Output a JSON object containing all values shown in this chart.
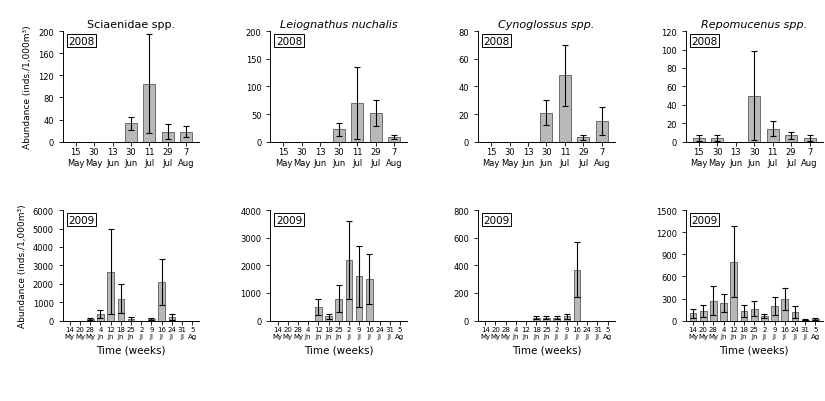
{
  "panels": [
    {
      "title": "Sciaenidae spp.",
      "title_italic": false,
      "rows": [
        {
          "year": "2008",
          "ylim": [
            0,
            200
          ],
          "yticks": [
            0,
            40,
            80,
            120,
            160,
            200
          ],
          "bars": [
            0,
            0,
            0,
            33,
            105,
            18,
            18
          ],
          "errors": [
            0,
            0,
            0,
            12,
            90,
            14,
            10
          ],
          "xticklabels": [
            "15\nMay",
            "30\nMay",
            "13\nJun",
            "30\nJun",
            "11\nJul",
            "29\nJul",
            "7\nAug"
          ]
        },
        {
          "year": "2009",
          "ylim": [
            0,
            6000
          ],
          "yticks": [
            0,
            1000,
            2000,
            3000,
            4000,
            5000,
            6000
          ],
          "bars": [
            0,
            0,
            100,
            350,
            2650,
            1200,
            100,
            0,
            100,
            2100,
            200,
            0,
            0
          ],
          "errors": [
            0,
            0,
            50,
            200,
            2300,
            800,
            100,
            0,
            50,
            1250,
            150,
            0,
            0
          ],
          "xticklabels": [
            "14\nMy",
            "20\nMy",
            "28\nMy",
            "4\nJn",
            "12\nJn",
            "18\nJn",
            "25\nJn",
            "2\nJl",
            "9\nJl",
            "16\nJl",
            "24\nJl",
            "31\nJl",
            "5\nAg"
          ]
        }
      ]
    },
    {
      "title": "Leiognathus nuchalis",
      "title_italic": true,
      "rows": [
        {
          "year": "2008",
          "ylim": [
            0,
            200
          ],
          "yticks": [
            0,
            50,
            100,
            150,
            200
          ],
          "bars": [
            0,
            0,
            0,
            22,
            70,
            52,
            8
          ],
          "errors": [
            0,
            0,
            0,
            12,
            65,
            23,
            4
          ],
          "xticklabels": [
            "15\nMay",
            "30\nMay",
            "13\nJun",
            "30\nJun",
            "11\nJul",
            "29\nJul",
            "7\nAug"
          ]
        },
        {
          "year": "2009",
          "ylim": [
            0,
            4000
          ],
          "yticks": [
            0,
            1000,
            2000,
            3000,
            4000
          ],
          "bars": [
            0,
            0,
            0,
            0,
            500,
            150,
            800,
            2200,
            1600,
            1500,
            0,
            0,
            0
          ],
          "errors": [
            0,
            0,
            0,
            0,
            300,
            100,
            500,
            1400,
            1100,
            900,
            0,
            0,
            0
          ],
          "xticklabels": [
            "14\nMy",
            "20\nMy",
            "28\nMy",
            "4\nJn",
            "12\nJn",
            "18\nJn",
            "25\nJn",
            "2\nJl",
            "9\nJl",
            "16\nJl",
            "24\nJl",
            "31\nJl",
            "5\nAg"
          ]
        }
      ]
    },
    {
      "title": "Cynoglossus spp.",
      "title_italic": true,
      "rows": [
        {
          "year": "2008",
          "ylim": [
            0,
            80
          ],
          "yticks": [
            0,
            20,
            40,
            60,
            80
          ],
          "bars": [
            0,
            0,
            0,
            21,
            48,
            3,
            15
          ],
          "errors": [
            0,
            0,
            0,
            9,
            22,
            2,
            10
          ],
          "xticklabels": [
            "15\nMay",
            "30\nMay",
            "13\nJun",
            "30\nJun",
            "11\nJul",
            "29\nJul",
            "7\nAug"
          ]
        },
        {
          "year": "2009",
          "ylim": [
            0,
            800
          ],
          "yticks": [
            0,
            200,
            400,
            600,
            800
          ],
          "bars": [
            0,
            0,
            0,
            0,
            0,
            20,
            20,
            20,
            30,
            370,
            0,
            0,
            0
          ],
          "errors": [
            0,
            0,
            0,
            0,
            0,
            10,
            10,
            10,
            15,
            200,
            0,
            0,
            0
          ],
          "xticklabels": [
            "14\nMy",
            "20\nMy",
            "28\nMy",
            "4\nJn",
            "12\nJn",
            "18\nJn",
            "25\nJn",
            "2\nJl",
            "9\nJl",
            "16\nJl",
            "24\nJl",
            "31\nJl",
            "5\nAg"
          ]
        }
      ]
    },
    {
      "title": "Repomucenus spp.",
      "title_italic": true,
      "rows": [
        {
          "year": "2008",
          "ylim": [
            0,
            120
          ],
          "yticks": [
            0,
            20,
            40,
            60,
            80,
            100,
            120
          ],
          "bars": [
            4,
            4,
            0,
            50,
            14,
            7,
            4
          ],
          "errors": [
            3,
            3,
            0,
            48,
            8,
            4,
            3
          ],
          "xticklabels": [
            "15\nMay",
            "30\nMay",
            "13\nJun",
            "30\nJun",
            "11\nJul",
            "29\nJul",
            "7\nAug"
          ]
        },
        {
          "year": "2009",
          "ylim": [
            0,
            1500
          ],
          "yticks": [
            0,
            300,
            600,
            900,
            1200,
            1500
          ],
          "bars": [
            100,
            130,
            270,
            240,
            800,
            130,
            160,
            60,
            200,
            290,
            120,
            10,
            20
          ],
          "errors": [
            60,
            80,
            200,
            120,
            480,
            80,
            100,
            30,
            120,
            150,
            80,
            5,
            10
          ],
          "xticklabels": [
            "14\nMy",
            "20\nMy",
            "28\nMy",
            "4\nJn",
            "12\nJn",
            "18\nJn",
            "25\nJn",
            "2\nJl",
            "9\nJl",
            "16\nJl",
            "24\nJl",
            "31\nJl",
            "5\nAg"
          ]
        }
      ]
    }
  ],
  "bar_color": "#b8b8b8",
  "bar_edge_color": "#404040",
  "ylabel": "Abundance (inds./1,000m³)",
  "xlabel": "Time (weeks)",
  "figsize": [
    8.25,
    4.02
  ],
  "dpi": 100
}
